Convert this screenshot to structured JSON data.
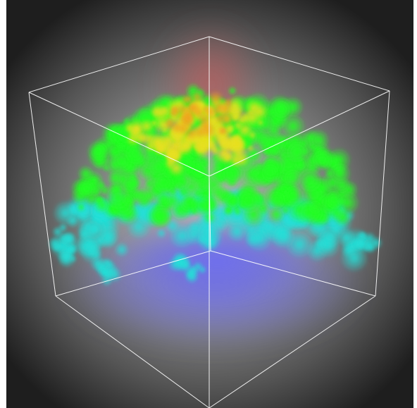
{
  "scene": {
    "subject": "volume-rendering",
    "colors": {
      "background_center": "#b9b9b9",
      "background_edge": "#1e1e1e",
      "bounding_box": "#ffffff",
      "top_glow": "#c85a5a",
      "bottom_glow": "#6e6ef0",
      "cloud_green": "#22ff22",
      "cloud_yellow": "#e8e020",
      "cloud_cyan": "#22e0d8",
      "cloud_orange": "#f0a020"
    }
  }
}
